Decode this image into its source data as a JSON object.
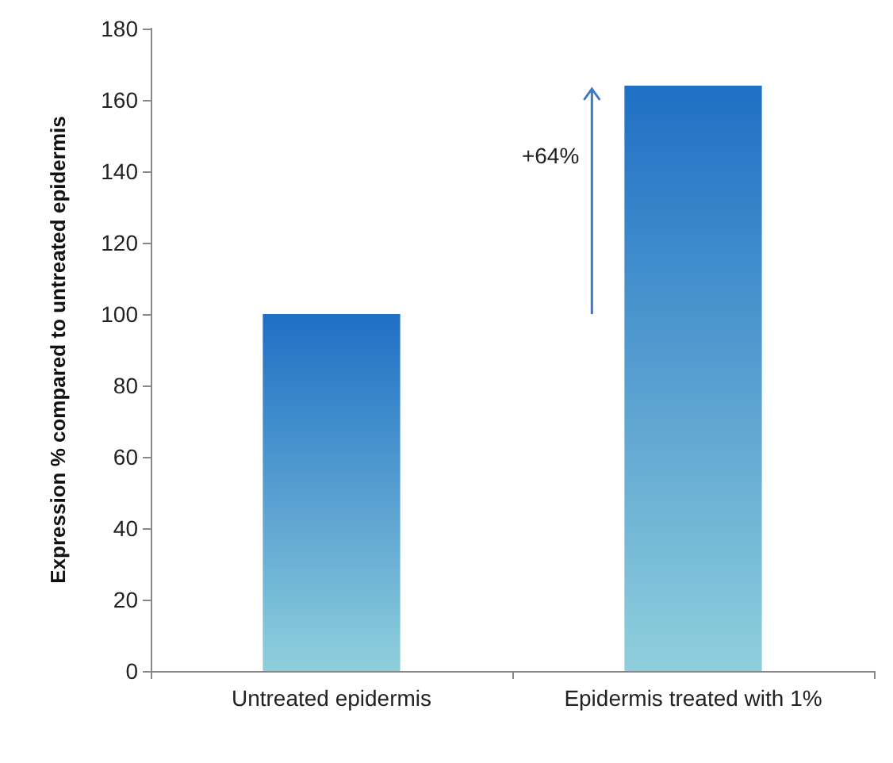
{
  "chart_data": {
    "type": "bar",
    "ylabel": "Expression % compared to untreated epidermis",
    "categories": [
      "Untreated epidermis",
      "Epidermis treated with 1%"
    ],
    "values": [
      100,
      164
    ],
    "color": "#1f6fc5",
    "ylim": [
      0,
      180
    ],
    "yticks": [
      0,
      20,
      40,
      60,
      80,
      100,
      120,
      140,
      160,
      180
    ],
    "grid": false,
    "annotations": [
      "+64%"
    ]
  }
}
